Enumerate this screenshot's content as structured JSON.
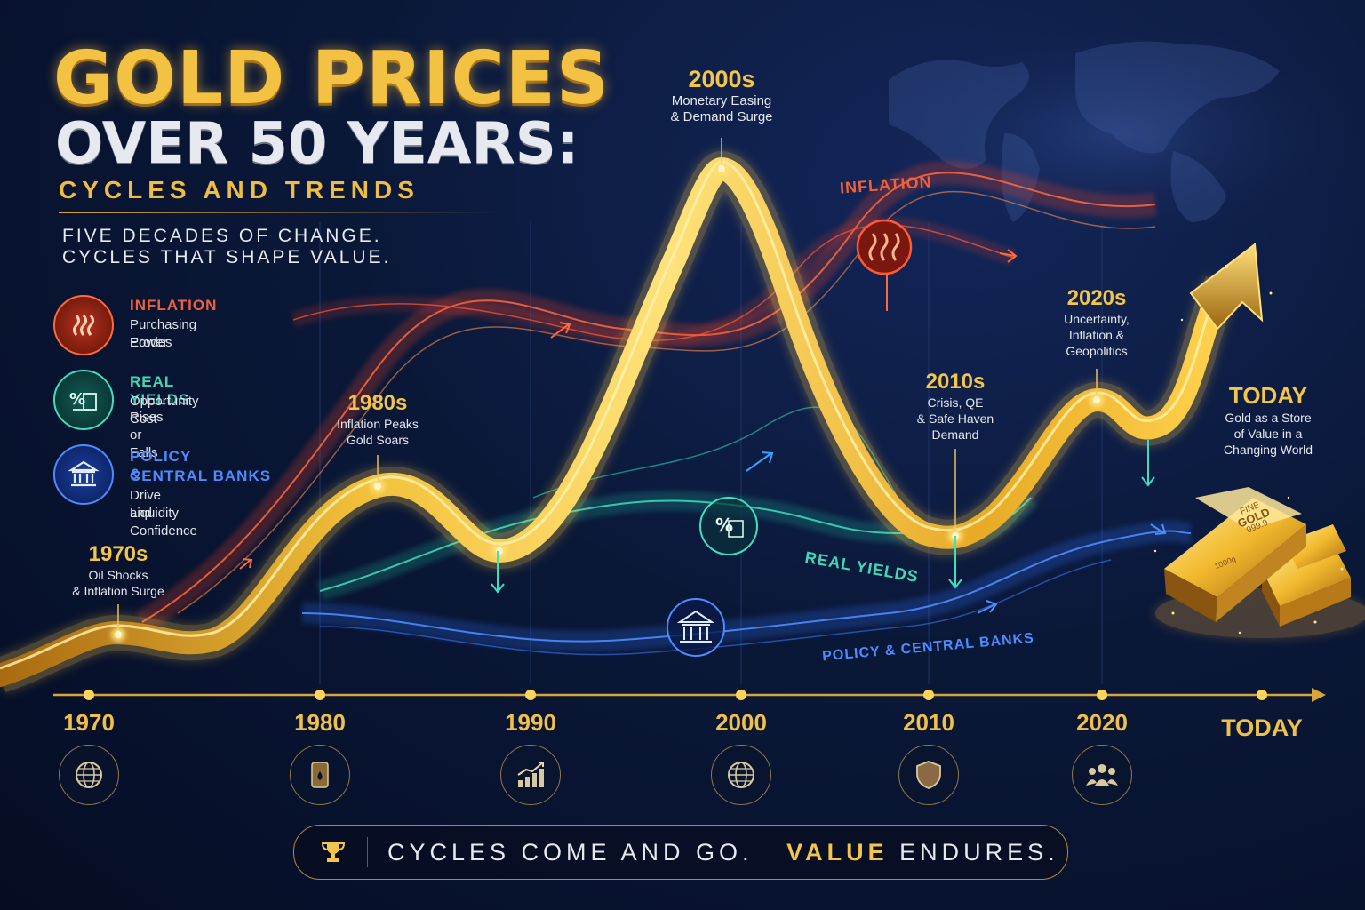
{
  "title": {
    "line1": "GOLD PRICES",
    "line2": "OVER 50 YEARS:",
    "line3": "CYCLES AND TRENDS"
  },
  "tagline": {
    "line1": "FIVE DECADES OF CHANGE.",
    "line2": "CYCLES THAT SHAPE VALUE."
  },
  "legend": [
    {
      "title": "INFLATION",
      "desc1": "Purchasing Power",
      "desc2": "Erodes",
      "icon": "heat-waves-icon",
      "color": "#e8532d"
    },
    {
      "title": "REAL YIELDS",
      "desc1": "Opportunity Cost",
      "desc2": "Rises or Falls",
      "icon": "percent-document-icon",
      "color": "#2ec5a8"
    },
    {
      "title": "POLICY &",
      "title2": "CENTRAL BANKS",
      "desc1": "Drive Liquidity",
      "desc2": "and Confidence",
      "icon": "bank-building-icon",
      "color": "#3d7cf0"
    }
  ],
  "annotations": [
    {
      "head": "1970s",
      "line1": "Oil Shocks",
      "line2": "& Inflation Surge"
    },
    {
      "head": "1980s",
      "line1": "Inflation Peaks",
      "line2": "Gold Soars"
    },
    {
      "head": "2000s",
      "line1": "Monetary Easing",
      "line2": "& Demand Surge"
    },
    {
      "head": "2010s",
      "line1": "Crisis, QE",
      "line2": "& Safe Haven",
      "line3": "Demand"
    },
    {
      "head": "2020s",
      "line1": "Uncertainty,",
      "line2": "Inflation &",
      "line3": "Geopolitics"
    },
    {
      "head": "TODAY",
      "line1": "Gold as a Store",
      "line2": "of Value in a",
      "line3": "Changing World"
    }
  ],
  "flow_labels": {
    "inflation": "INFLATION",
    "real_yields": "REAL YIELDS",
    "policy": "POLICY & CENTRAL BANKS"
  },
  "gold_bar": {
    "line1": "FINE",
    "line2": "GOLD",
    "line3": "999.9",
    "weight": "1000g"
  },
  "axis": [
    {
      "year": "1970",
      "icon": "globe-icon"
    },
    {
      "year": "1980",
      "icon": "oil-barrel-icon"
    },
    {
      "year": "1990",
      "icon": "growth-chart-icon"
    },
    {
      "year": "2000",
      "icon": "globe-icon"
    },
    {
      "year": "2010",
      "icon": "shield-icon"
    },
    {
      "year": "2020",
      "icon": "people-icon"
    },
    {
      "year": "TODAY"
    }
  ],
  "footer": {
    "text1": "CYCLES COME AND GO.",
    "text2": "VALUE",
    "text3": "ENDURES.",
    "icon": "trophy-icon"
  },
  "colors": {
    "gold": "#f3c548",
    "inflation": "#e8532d",
    "real_yields": "#2ec5a8",
    "policy": "#3d7cf0",
    "background": "#0a1838"
  }
}
